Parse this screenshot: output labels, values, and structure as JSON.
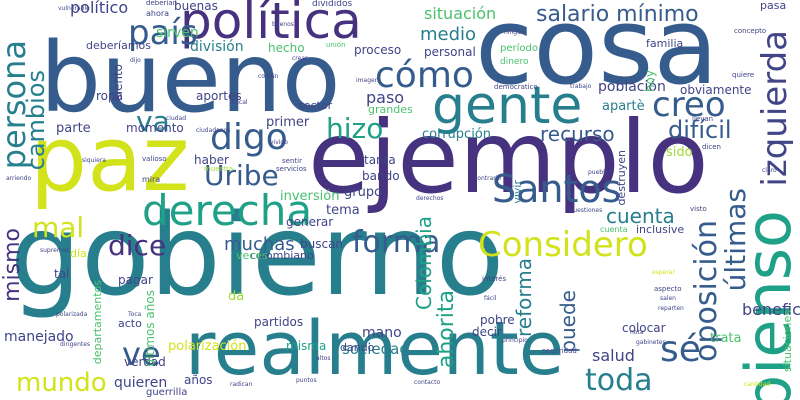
{
  "palette": {
    "purple": "#46327e",
    "indigo": "#414487",
    "blue": "#365c8d",
    "teal": "#277f8e",
    "green": "#1fa187",
    "lime": "#4ac16d",
    "yellow": "#a0da39",
    "bright": "#d2e21b"
  },
  "words": [
    {
      "text": "gobierno",
      "color": "#277f8e",
      "vertical": false
    },
    {
      "text": "ejemplo",
      "color": "#46327e",
      "vertical": false
    },
    {
      "text": "cosa",
      "color": "#365c8d",
      "vertical": false
    },
    {
      "text": "bueno",
      "color": "#365c8d",
      "vertical": false
    },
    {
      "text": "paz",
      "color": "#d2e21b",
      "vertical": false
    },
    {
      "text": "realmente",
      "color": "#277f8e",
      "vertical": false
    },
    {
      "text": "política",
      "color": "#46327e",
      "vertical": false
    },
    {
      "text": "gente",
      "color": "#277f8e",
      "vertical": false
    },
    {
      "text": "pienso",
      "color": "#1fa187",
      "vertical": true
    },
    {
      "text": "Considero",
      "color": "#d2e21b",
      "vertical": false
    },
    {
      "text": "derecha",
      "color": "#1fa187",
      "vertical": false
    },
    {
      "text": "Santos",
      "color": "#365c8d",
      "vertical": false
    },
    {
      "text": "izquierda",
      "color": "#414487",
      "vertical": true
    },
    {
      "text": "oposición",
      "color": "#365c8d",
      "vertical": true
    },
    {
      "text": "cómo",
      "color": "#365c8d",
      "vertical": false
    },
    {
      "text": "creo",
      "color": "#365c8d",
      "vertical": false
    },
    {
      "text": "digo",
      "color": "#365c8d",
      "vertical": false
    },
    {
      "text": "hizo",
      "color": "#1fa187",
      "vertical": false
    },
    {
      "text": "forma",
      "color": "#365c8d",
      "vertical": false
    },
    {
      "text": "país",
      "color": "#365c8d",
      "vertical": false
    },
    {
      "text": "persona",
      "color": "#277f8e",
      "vertical": true
    },
    {
      "text": "mundo",
      "color": "#d2e21b",
      "vertical": false
    },
    {
      "text": "toda",
      "color": "#277f8e",
      "vertical": false
    },
    {
      "text": "sé",
      "color": "#365c8d",
      "vertical": false
    },
    {
      "text": "Uribe",
      "color": "#365c8d",
      "vertical": false
    },
    {
      "text": "salario mínimo",
      "color": "#365c8d",
      "vertical": false
    },
    {
      "text": "últimas",
      "color": "#365c8d",
      "vertical": true
    },
    {
      "text": "dice",
      "color": "#46327e",
      "vertical": false
    },
    {
      "text": "ve",
      "color": "#365c8d",
      "vertical": false
    },
    {
      "text": "mismo",
      "color": "#46327e",
      "vertical": true
    },
    {
      "text": "cambios",
      "color": "#277f8e",
      "vertical": true
    },
    {
      "text": "mal",
      "color": "#d2e21b",
      "vertical": false
    },
    {
      "text": "va",
      "color": "#277f8e",
      "vertical": false
    },
    {
      "text": "difícil",
      "color": "#365c8d",
      "vertical": false
    },
    {
      "text": "cuenta",
      "color": "#277f8e",
      "vertical": false
    },
    {
      "text": "muchas",
      "color": "#365c8d",
      "vertical": false
    },
    {
      "text": "situación",
      "color": "#4ac16d",
      "vertical": false
    },
    {
      "text": "Colombia",
      "color": "#1fa187",
      "vertical": true
    },
    {
      "text": "reforma",
      "color": "#277f8e",
      "vertical": true
    },
    {
      "text": "recurso",
      "color": "#365c8d",
      "vertical": false
    },
    {
      "text": "puede",
      "color": "#365c8d",
      "vertical": true
    },
    {
      "text": "ahorita",
      "color": "#1fa187",
      "vertical": true
    },
    {
      "text": "sirven",
      "color": "#4ac16d",
      "vertical": false
    },
    {
      "text": "medio",
      "color": "#277f8e",
      "vertical": false
    },
    {
      "text": "salud",
      "color": "#414487",
      "vertical": false
    },
    {
      "text": "sociedad",
      "color": "#277f8e",
      "vertical": false
    },
    {
      "text": "beneficio",
      "color": "#414487",
      "vertical": false
    },
    {
      "text": "manejado",
      "color": "#414487",
      "vertical": false
    },
    {
      "text": "quieren",
      "color": "#414487",
      "vertical": false
    },
    {
      "text": "mano",
      "color": "#414487",
      "vertical": false
    },
    {
      "text": "político",
      "color": "#414487",
      "vertical": false
    },
    {
      "text": "tema",
      "color": "#414487",
      "vertical": false
    },
    {
      "text": "grupo",
      "color": "#414487",
      "vertical": false
    },
    {
      "text": "corrupción",
      "color": "#277f8e",
      "vertical": false
    },
    {
      "text": "paso",
      "color": "#414487",
      "vertical": false
    },
    {
      "text": "población",
      "color": "#414487",
      "vertical": false
    },
    {
      "text": "obviamente",
      "color": "#414487",
      "vertical": false
    },
    {
      "text": "apartè",
      "color": "#277f8e",
      "vertical": false
    },
    {
      "text": "buenas",
      "color": "#414487",
      "vertical": false
    },
    {
      "text": "división",
      "color": "#277f8e",
      "vertical": false
    },
    {
      "text": "hecho",
      "color": "#4ac16d",
      "vertical": false
    },
    {
      "text": "proceso",
      "color": "#414487",
      "vertical": false
    },
    {
      "text": "personal",
      "color": "#414487",
      "vertical": false
    },
    {
      "text": "familia",
      "color": "#414487",
      "vertical": false
    },
    {
      "text": "momento",
      "color": "#414487",
      "vertical": false
    },
    {
      "text": "primer",
      "color": "#414487",
      "vertical": false
    },
    {
      "text": "parte",
      "color": "#414487",
      "vertical": false
    },
    {
      "text": "haber",
      "color": "#414487",
      "vertical": false
    },
    {
      "text": "aportes",
      "color": "#414487",
      "vertical": false
    },
    {
      "text": "ropa",
      "color": "#414487",
      "vertical": false
    },
    {
      "text": "siento",
      "color": "#414487",
      "vertical": true
    },
    {
      "text": "tanta",
      "color": "#414487",
      "vertical": false
    },
    {
      "text": "bando",
      "color": "#414487",
      "vertical": false
    },
    {
      "text": "tal",
      "color": "#414487",
      "vertical": false
    },
    {
      "text": "pagar",
      "color": "#414487",
      "vertical": false
    },
    {
      "text": "buscan",
      "color": "#414487",
      "vertical": false
    },
    {
      "text": "generar",
      "color": "#414487",
      "vertical": false
    },
    {
      "text": "inversión",
      "color": "#4ac16d",
      "vertical": false
    },
    {
      "text": "colombiano",
      "color": "#414487",
      "vertical": false
    },
    {
      "text": "veces",
      "color": "#4ac16d",
      "vertical": false
    },
    {
      "text": "polarización",
      "color": "#d2e21b",
      "vertical": false
    },
    {
      "text": "misma",
      "color": "#1fa187",
      "vertical": false
    },
    {
      "text": "partidos",
      "color": "#414487",
      "vertical": false
    },
    {
      "text": "verdad",
      "color": "#414487",
      "vertical": false
    },
    {
      "text": "acto",
      "color": "#414487",
      "vertical": false
    },
    {
      "text": "dando",
      "color": "#414487",
      "vertical": false
    },
    {
      "text": "pobre",
      "color": "#414487",
      "vertical": false
    },
    {
      "text": "decir",
      "color": "#414487",
      "vertical": false
    },
    {
      "text": "colocar",
      "color": "#414487",
      "vertical": false
    },
    {
      "text": "trata",
      "color": "#4ac16d",
      "vertical": false
    },
    {
      "text": "vivir",
      "color": "#277f8e",
      "vertical": true
    },
    {
      "text": "años",
      "color": "#414487",
      "vertical": false
    },
    {
      "text": "guerrilla",
      "color": "#414487",
      "vertical": false
    },
    {
      "text": "sido",
      "color": "#a0da39",
      "vertical": false
    },
    {
      "text": "sector",
      "color": "#414487",
      "vertical": false
    },
    {
      "text": "grandes",
      "color": "#4ac16d",
      "vertical": false
    },
    {
      "text": "hoy",
      "color": "#4ac16d",
      "vertical": true
    },
    {
      "text": "deberíamos",
      "color": "#414487",
      "vertical": false
    },
    {
      "text": "inclusive",
      "color": "#414487",
      "vertical": false
    },
    {
      "text": "destruyen",
      "color": "#414487",
      "vertical": true
    },
    {
      "text": "últimos años",
      "color": "#4ac16d",
      "vertical": true
    },
    {
      "text": "departamentos",
      "color": "#4ac16d",
      "vertical": true
    },
    {
      "text": "da",
      "color": "#a0da39",
      "vertical": false
    },
    {
      "text": "día",
      "color": "#d2e21b",
      "vertical": false
    },
    {
      "text": "pasa",
      "color": "#414487",
      "vertical": false
    },
    {
      "text": "situaciones",
      "color": "#4ac16d",
      "vertical": true
    },
    {
      "text": "ahora",
      "color": "#414487",
      "vertical": false
    },
    {
      "text": "período",
      "color": "#4ac16d",
      "vertical": false
    },
    {
      "text": "dinero",
      "color": "#4ac16d",
      "vertical": false
    },
    {
      "text": "demócratico",
      "color": "#414487",
      "vertical": false
    },
    {
      "text": "divididos",
      "color": "#414487",
      "vertical": false
    },
    {
      "text": "deberían",
      "color": "#414487",
      "vertical": false
    },
    {
      "text": "cuenta",
      "color": "#4ac16d",
      "vertical": false
    },
    {
      "text": "muestra",
      "color": "#a0da39",
      "vertical": false
    },
    {
      "text": "sentir",
      "color": "#414487",
      "vertical": false
    },
    {
      "text": "servicios",
      "color": "#414487",
      "vertical": false
    },
    {
      "text": "mira",
      "color": "#414487",
      "vertical": false
    },
    {
      "text": "valioso",
      "color": "#414487",
      "vertical": false
    },
    {
      "text": "ciudad",
      "color": "#414487",
      "vertical": false
    },
    {
      "text": "vivido",
      "color": "#414487",
      "vertical": false
    },
    {
      "text": "derechos",
      "color": "#414487",
      "vertical": false
    },
    {
      "text": "contrario",
      "color": "#414487",
      "vertical": false
    },
    {
      "text": "interés",
      "color": "#414487",
      "vertical": false
    },
    {
      "text": "fácil",
      "color": "#414487",
      "vertical": false
    },
    {
      "text": "principio",
      "color": "#414487",
      "vertical": false
    },
    {
      "text": "seguridad",
      "color": "#414487",
      "vertical": false
    },
    {
      "text": "aspecto",
      "color": "#414487",
      "vertical": false
    },
    {
      "text": "salen",
      "color": "#414487",
      "vertical": false
    },
    {
      "text": "reparten",
      "color": "#414487",
      "vertical": false
    },
    {
      "text": "esperar",
      "color": "#d2e21b",
      "vertical": false
    },
    {
      "text": "cantidad",
      "color": "#d2e21b",
      "vertical": false
    },
    {
      "text": "Toca",
      "color": "#414487",
      "vertical": false
    },
    {
      "text": "polarizada",
      "color": "#414487",
      "vertical": false
    },
    {
      "text": "dirigentes",
      "color": "#414487",
      "vertical": false
    },
    {
      "text": "supremas",
      "color": "#414487",
      "vertical": false
    },
    {
      "text": "altos",
      "color": "#414487",
      "vertical": false
    },
    {
      "text": "radican",
      "color": "#414487",
      "vertical": false
    },
    {
      "text": "puntos",
      "color": "#414487",
      "vertical": false
    },
    {
      "text": "contacto",
      "color": "#414487",
      "vertical": false
    },
    {
      "text": "vulnerable",
      "color": "#414487",
      "vertical": false
    },
    {
      "text": "arriendo",
      "color": "#414487",
      "vertical": false
    },
    {
      "text": "siquiera",
      "color": "#414487",
      "vertical": false
    },
    {
      "text": "llevan",
      "color": "#414487",
      "vertical": false
    },
    {
      "text": "dicen",
      "color": "#414487",
      "vertical": false
    },
    {
      "text": "pueblo",
      "color": "#414487",
      "vertical": false
    },
    {
      "text": "visto",
      "color": "#414487",
      "vertical": false
    },
    {
      "text": "crear",
      "color": "#414487",
      "vertical": false
    },
    {
      "text": "ningún",
      "color": "#414487",
      "vertical": false
    },
    {
      "text": "trabajo",
      "color": "#414487",
      "vertical": false
    },
    {
      "text": "quiere",
      "color": "#414487",
      "vertical": false
    },
    {
      "text": "concepto",
      "color": "#414487",
      "vertical": false
    },
    {
      "text": "unión",
      "color": "#4ac16d",
      "vertical": false
    },
    {
      "text": "imagen",
      "color": "#414487",
      "vertical": false
    },
    {
      "text": "común",
      "color": "#414487",
      "vertical": false
    },
    {
      "text": "dijo",
      "color": "#414487",
      "vertical": false
    },
    {
      "text": "nota",
      "color": "#414487",
      "vertical": false
    },
    {
      "text": "gabinetes",
      "color": "#414487",
      "vertical": false
    },
    {
      "text": "cuestiones",
      "color": "#414487",
      "vertical": false
    },
    {
      "text": "buenos",
      "color": "#414487",
      "vertical": false
    },
    {
      "text": "fiscal",
      "color": "#414487",
      "vertical": false
    },
    {
      "text": "ciudadanos",
      "color": "#414487",
      "vertical": false
    },
    {
      "text": "claro",
      "color": "#414487",
      "vertical": false
    }
  ]
}
